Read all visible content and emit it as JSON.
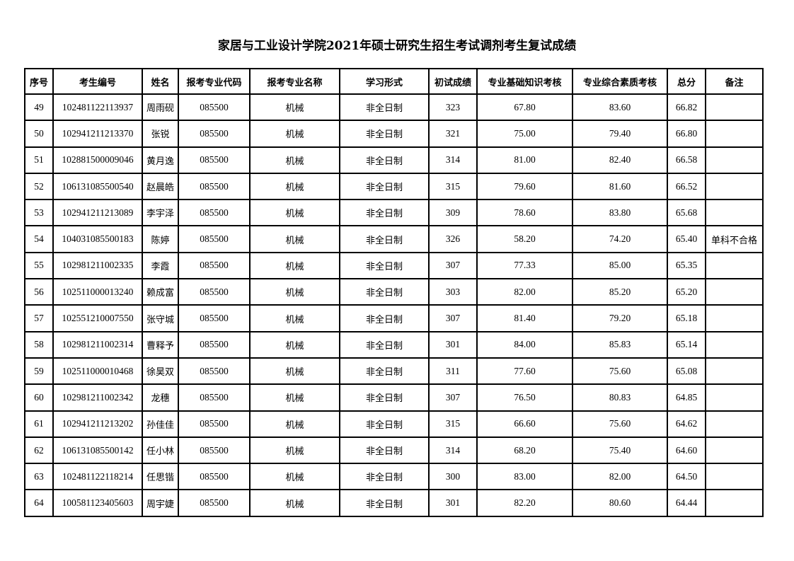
{
  "title": "家居与工业设计学院2021年硕士研究生招生考试调剂考生复试成绩",
  "headers": [
    "序号",
    "考生编号",
    "姓名",
    "报考专业代码",
    "报考专业名称",
    "学习形式",
    "初试成绩",
    "专业基础知识考核",
    "专业综合素质考核",
    "总分",
    "备注"
  ],
  "rows": [
    [
      "49",
      "102481122113937",
      "周雨砚",
      "085500",
      "机械",
      "非全日制",
      "323",
      "67.80",
      "83.60",
      "66.82",
      ""
    ],
    [
      "50",
      "102941211213370",
      "张锐",
      "085500",
      "机械",
      "非全日制",
      "321",
      "75.00",
      "79.40",
      "66.80",
      ""
    ],
    [
      "51",
      "102881500009046",
      "黄月逸",
      "085500",
      "机械",
      "非全日制",
      "314",
      "81.00",
      "82.40",
      "66.58",
      ""
    ],
    [
      "52",
      "106131085500540",
      "赵晨皓",
      "085500",
      "机械",
      "非全日制",
      "315",
      "79.60",
      "81.60",
      "66.52",
      ""
    ],
    [
      "53",
      "102941211213089",
      "李宇泽",
      "085500",
      "机械",
      "非全日制",
      "309",
      "78.60",
      "83.80",
      "65.68",
      ""
    ],
    [
      "54",
      "104031085500183",
      "陈婷",
      "085500",
      "机械",
      "非全日制",
      "326",
      "58.20",
      "74.20",
      "65.40",
      "单科不合格"
    ],
    [
      "55",
      "102981211002335",
      "李霞",
      "085500",
      "机械",
      "非全日制",
      "307",
      "77.33",
      "85.00",
      "65.35",
      ""
    ],
    [
      "56",
      "102511000013240",
      "赖成富",
      "085500",
      "机械",
      "非全日制",
      "303",
      "82.00",
      "85.20",
      "65.20",
      ""
    ],
    [
      "57",
      "102551210007550",
      "张守城",
      "085500",
      "机械",
      "非全日制",
      "307",
      "81.40",
      "79.20",
      "65.18",
      ""
    ],
    [
      "58",
      "102981211002314",
      "曹释予",
      "085500",
      "机械",
      "非全日制",
      "301",
      "84.00",
      "85.83",
      "65.14",
      ""
    ],
    [
      "59",
      "102511000010468",
      "徐昊双",
      "085500",
      "机械",
      "非全日制",
      "311",
      "77.60",
      "75.60",
      "65.08",
      ""
    ],
    [
      "60",
      "102981211002342",
      "龙穗",
      "085500",
      "机械",
      "非全日制",
      "307",
      "76.50",
      "80.83",
      "64.85",
      ""
    ],
    [
      "61",
      "102941211213202",
      "孙佳佳",
      "085500",
      "机械",
      "非全日制",
      "315",
      "66.60",
      "75.60",
      "64.62",
      ""
    ],
    [
      "62",
      "106131085500142",
      "任小林",
      "085500",
      "机械",
      "非全日制",
      "314",
      "68.20",
      "75.40",
      "64.60",
      ""
    ],
    [
      "63",
      "102481122118214",
      "任思锴",
      "085500",
      "机械",
      "非全日制",
      "300",
      "83.00",
      "82.00",
      "64.50",
      ""
    ],
    [
      "64",
      "100581123405603",
      "周宇婕",
      "085500",
      "机械",
      "非全日制",
      "301",
      "82.20",
      "80.60",
      "64.44",
      ""
    ]
  ]
}
